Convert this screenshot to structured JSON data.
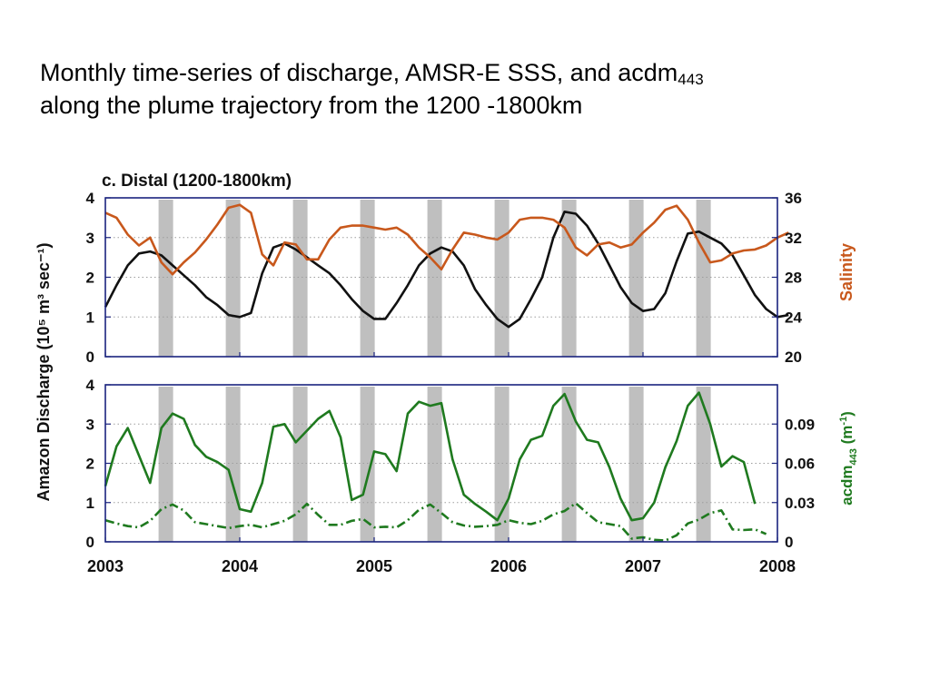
{
  "slide": {
    "title_line1_main": "Monthly time-series of discharge, AMSR-E SSS, and acdm",
    "title_line1_sub": "443",
    "title_line2": "along the plume trajectory from the 1200 -1800km"
  },
  "colors": {
    "discharge": "#111111",
    "salinity": "#c8581c",
    "acdm": "#1f7a1f",
    "shading": "#bfbfbf",
    "axis": "#1a237e",
    "grid": "#9e9e9e"
  },
  "chart_data": [
    {
      "type": "line",
      "title": "c. Distal (1200-1800km)",
      "ylabel": "Amazon Discharge (10⁵ m³ sec⁻¹)",
      "ylim": [
        0,
        4
      ],
      "yticks": [
        "0",
        "1",
        "2",
        "3",
        "4"
      ],
      "ylabel_right": "Salinity",
      "ylim_right": [
        20,
        36
      ],
      "yticks_right": [
        "20",
        "24",
        "28",
        "32",
        "36"
      ],
      "xlim": [
        2003,
        2008
      ],
      "grid": "horizontal dotted",
      "shaded_bands_x": [
        2003.45,
        2003.95,
        2004.45,
        2004.95,
        2005.45,
        2005.95,
        2006.45,
        2006.95,
        2007.45
      ],
      "series": [
        {
          "axis": "left",
          "x_start": 2003.0,
          "x_step": 0.08333,
          "values": [
            1.25,
            1.8,
            2.3,
            2.6,
            2.65,
            2.55,
            2.3,
            2.05,
            1.8,
            1.5,
            1.3,
            1.05,
            1.0,
            1.1,
            2.1,
            2.75,
            2.85,
            2.7,
            2.5,
            2.3,
            2.1,
            1.8,
            1.45,
            1.15,
            0.95,
            0.95,
            1.35,
            1.8,
            2.3,
            2.6,
            2.75,
            2.65,
            2.3,
            1.7,
            1.3,
            0.95,
            0.75,
            0.95,
            1.45,
            2.0,
            3.0,
            3.65,
            3.6,
            3.3,
            2.85,
            2.3,
            1.75,
            1.35,
            1.15,
            1.2,
            1.6,
            2.4,
            3.1,
            3.15,
            3.0,
            2.85,
            2.55,
            2.05,
            1.55,
            1.2,
            1.0,
            1.05
          ]
        },
        {
          "axis": "right",
          "x_start": 2003.0,
          "x_step": 0.08333,
          "values": [
            34.5,
            34.0,
            32.3,
            31.2,
            32.0,
            29.5,
            28.3,
            29.5,
            30.5,
            31.8,
            33.3,
            35.0,
            35.3,
            34.5,
            30.3,
            29.2,
            31.5,
            31.3,
            29.8,
            29.8,
            31.8,
            33.0,
            33.2,
            33.2,
            33.0,
            32.8,
            33.0,
            32.3,
            31.0,
            30.0,
            28.8,
            30.8,
            32.5,
            32.3,
            32.0,
            31.8,
            32.5,
            33.8,
            34.0,
            34.0,
            33.8,
            33.0,
            31.0,
            30.2,
            31.3,
            31.5,
            31.0,
            31.3,
            32.5,
            33.5,
            34.8,
            35.2,
            33.8,
            31.5,
            29.5,
            29.7,
            30.4,
            30.7,
            30.8,
            31.2,
            32.0,
            32.5
          ]
        }
      ]
    },
    {
      "type": "line",
      "ylim": [
        0,
        4
      ],
      "yticks": [
        "0",
        "1",
        "2",
        "3",
        "4"
      ],
      "ylabel_right": "acdm443 (m⁻¹)",
      "ylim_right": [
        0,
        0.12
      ],
      "yticks_right": [
        "0",
        "0.03",
        "0.06",
        "0.09"
      ],
      "xlim": [
        2003,
        2008
      ],
      "xticks": [
        "2003",
        "2004",
        "2005",
        "2006",
        "2007",
        "2008"
      ],
      "grid": "horizontal dotted",
      "shaded_bands_x": [
        2003.45,
        2003.95,
        2004.45,
        2004.95,
        2005.45,
        2005.95,
        2006.45,
        2006.95,
        2007.45
      ],
      "series": [
        {
          "axis": "right",
          "style": "solid",
          "x_start": 2003.0,
          "x_step": 0.08333,
          "values": [
            0.0425,
            0.073,
            0.087,
            0.066,
            0.045,
            0.087,
            0.098,
            0.094,
            0.074,
            0.065,
            0.061,
            0.055,
            0.025,
            0.023,
            0.045,
            0.088,
            0.09,
            0.076,
            0.085,
            0.094,
            0.1,
            0.08,
            0.032,
            0.036,
            0.069,
            0.067,
            0.054,
            0.098,
            0.107,
            0.104,
            0.106,
            0.063,
            0.036,
            0.029,
            0.023,
            0.0165,
            0.033,
            0.063,
            0.078,
            0.081,
            0.104,
            0.113,
            0.092,
            0.078,
            0.076,
            0.057,
            0.033,
            0.0165,
            0.018,
            0.03,
            0.057,
            0.077,
            0.104,
            0.114,
            0.09,
            0.0575,
            0.0655,
            0.061,
            0.029
          ]
        },
        {
          "axis": "right",
          "style": "dashdot",
          "x_start": 2003.0,
          "x_step": 0.08333,
          "values": [
            0.0165,
            0.014,
            0.012,
            0.011,
            0.016,
            0.025,
            0.0285,
            0.024,
            0.015,
            0.0135,
            0.012,
            0.0105,
            0.012,
            0.013,
            0.011,
            0.0135,
            0.016,
            0.021,
            0.029,
            0.0205,
            0.013,
            0.013,
            0.016,
            0.0175,
            0.011,
            0.0115,
            0.011,
            0.0165,
            0.0245,
            0.0285,
            0.022,
            0.015,
            0.0125,
            0.0115,
            0.012,
            0.013,
            0.0165,
            0.0145,
            0.0135,
            0.016,
            0.021,
            0.0235,
            0.0295,
            0.022,
            0.015,
            0.0135,
            0.012,
            0.0025,
            0.0035,
            0.0015,
            0.001,
            0.005,
            0.014,
            0.017,
            0.022,
            0.024,
            0.0095,
            0.009,
            0.0095,
            0.006
          ]
        }
      ]
    }
  ]
}
